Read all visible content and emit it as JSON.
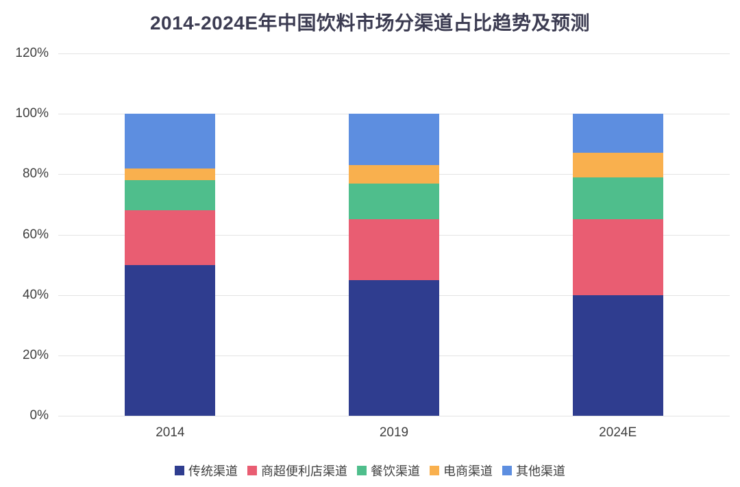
{
  "chart_data": {
    "type": "bar",
    "stacked": true,
    "title": "2014-2024E年中国饮料市场分渠道占比趋势及预测",
    "categories": [
      "2014",
      "2019",
      "2024E"
    ],
    "series": [
      {
        "name": "传统渠道",
        "color": "#2F3D8F",
        "values": [
          50,
          45,
          40
        ]
      },
      {
        "name": "商超便利店渠道",
        "color": "#E95D72",
        "values": [
          18,
          20,
          25
        ]
      },
      {
        "name": "餐饮渠道",
        "color": "#4FBE8C",
        "values": [
          10,
          12,
          14
        ]
      },
      {
        "name": "电商渠道",
        "color": "#F9B04E",
        "values": [
          4,
          6,
          8
        ]
      },
      {
        "name": "其他渠道",
        "color": "#5D8EE0",
        "values": [
          18,
          17,
          13
        ]
      }
    ],
    "unit": "%",
    "ylim": [
      0,
      120
    ],
    "yticks": [
      {
        "value": 0,
        "label": "0%"
      },
      {
        "value": 20,
        "label": "20%"
      },
      {
        "value": 40,
        "label": "40%"
      },
      {
        "value": 60,
        "label": "60%"
      },
      {
        "value": 80,
        "label": "80%"
      },
      {
        "value": 100,
        "label": "100%"
      },
      {
        "value": 120,
        "label": "120%"
      }
    ],
    "grid": true,
    "legend_position": "bottom"
  }
}
